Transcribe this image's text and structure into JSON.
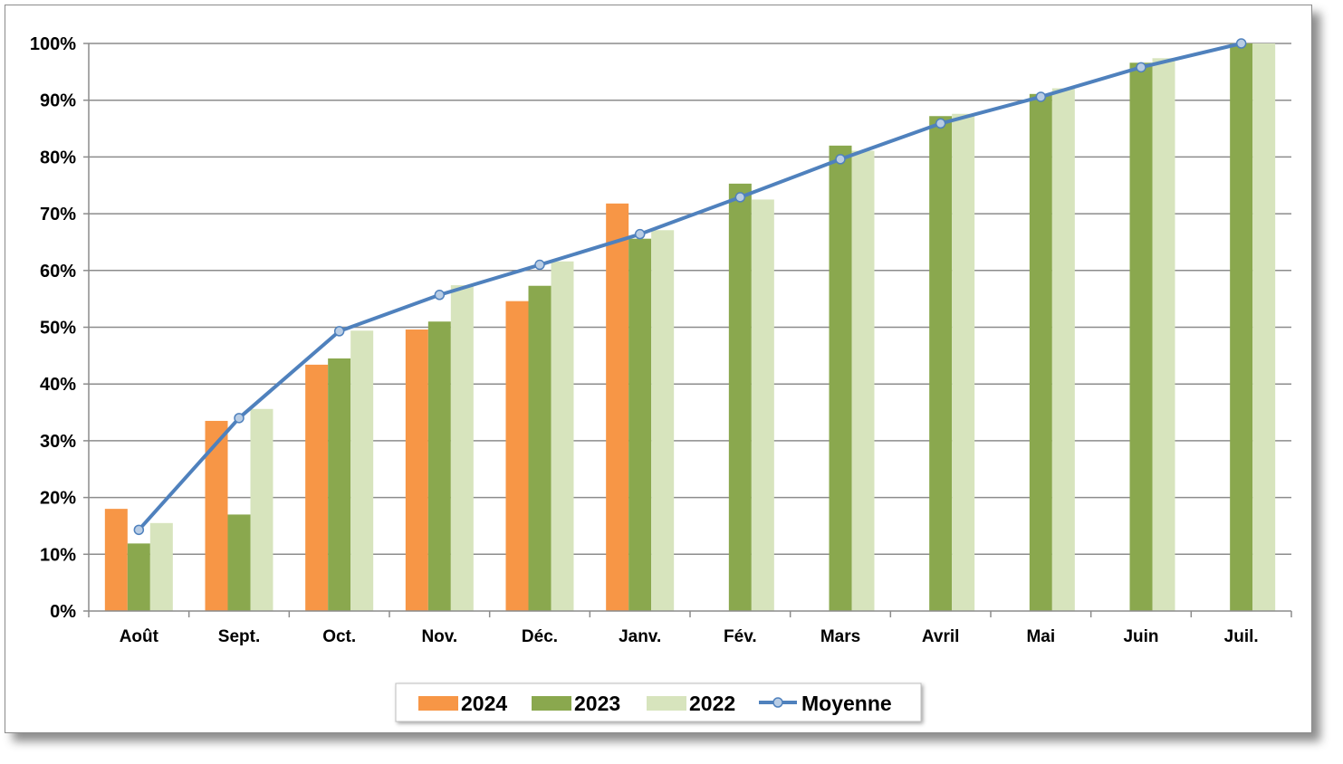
{
  "colors": {
    "2024": "#f79646",
    "2023": "#8aa84e",
    "2022": "#d7e4bd",
    "moyenne": "#4f81bd",
    "marker_fill": "#b9cde5",
    "gridline": "#8c8c8c"
  },
  "chart_data": {
    "type": "bar",
    "title": "",
    "xlabel": "",
    "ylabel": "",
    "ylim": [
      0,
      100
    ],
    "y_ticks": [
      "0%",
      "10%",
      "20%",
      "30%",
      "40%",
      "50%",
      "60%",
      "70%",
      "80%",
      "90%",
      "100%"
    ],
    "grid": true,
    "legend_position": "bottom",
    "categories": [
      "Août",
      "Sept.",
      "Oct.",
      "Nov.",
      "Déc.",
      "Janv.",
      "Fév.",
      "Mars",
      "Avril",
      "Mai",
      "Juin",
      "Juil."
    ],
    "series": [
      {
        "name": "2024",
        "type": "bar",
        "values": [
          18,
          33.5,
          43.4,
          49.6,
          54.6,
          71.8,
          null,
          null,
          null,
          null,
          null,
          null
        ]
      },
      {
        "name": "2023",
        "type": "bar",
        "values": [
          11.9,
          17,
          44.5,
          51,
          57.3,
          65.6,
          75.3,
          82,
          87.2,
          91.1,
          96.6,
          100
        ]
      },
      {
        "name": "2022",
        "type": "bar",
        "values": [
          15.5,
          35.6,
          49.4,
          57.4,
          61.6,
          67.1,
          72.5,
          81.1,
          87.6,
          92.1,
          97.4,
          100
        ]
      },
      {
        "name": "Moyenne",
        "type": "line",
        "values": [
          14.3,
          34,
          49.3,
          55.7,
          61,
          66.4,
          72.9,
          79.6,
          85.9,
          90.6,
          95.8,
          100
        ]
      }
    ]
  }
}
